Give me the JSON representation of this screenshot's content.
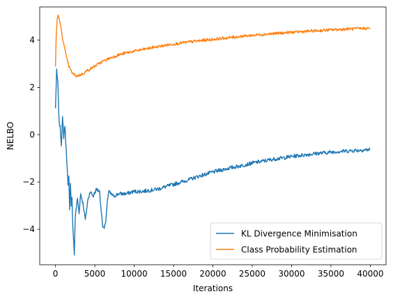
{
  "chart_data": {
    "type": "line",
    "title": "",
    "xlabel": "Iterations",
    "ylabel": "NELBO",
    "xlim": [
      -2000,
      42000
    ],
    "ylim": [
      -5.5,
      5.4
    ],
    "xticks": [
      0,
      5000,
      10000,
      15000,
      20000,
      25000,
      30000,
      35000,
      40000
    ],
    "yticks": [
      -4,
      -2,
      0,
      2,
      4
    ],
    "grid": false,
    "legend_position": "lower-right",
    "series": [
      {
        "name": "KL Divergence Minimisation",
        "color": "#1f77b4",
        "noise": 0.08,
        "x": [
          0,
          150,
          300,
          450,
          600,
          750,
          900,
          1050,
          1200,
          1300,
          1400,
          1500,
          1600,
          1700,
          1800,
          1900,
          2000,
          2100,
          2200,
          2300,
          2400,
          2500,
          2600,
          2800,
          3000,
          3200,
          3500,
          3800,
          4100,
          4400,
          4800,
          5200,
          5600,
          6000,
          6200,
          6400,
          6600,
          6800,
          7000,
          7400,
          8000,
          9000,
          10000,
          11000,
          12000,
          13000,
          14000,
          15000,
          16000,
          17000,
          18000,
          19000,
          20000,
          21000,
          22000,
          23000,
          24000,
          25000,
          26000,
          27000,
          28000,
          29000,
          30000,
          31000,
          32000,
          33000,
          34000,
          35000,
          36000,
          37000,
          38000,
          39000,
          40000
        ],
        "y": [
          1.1,
          2.7,
          2.2,
          0.6,
          0.3,
          -0.4,
          0.7,
          -0.1,
          0.4,
          -0.3,
          -0.8,
          -1.5,
          -2.2,
          -1.8,
          -3.1,
          -2.0,
          -3.0,
          -2.7,
          -3.9,
          -4.4,
          -5.1,
          -3.6,
          -3.2,
          -2.7,
          -3.3,
          -2.5,
          -2.9,
          -3.6,
          -2.8,
          -2.4,
          -2.6,
          -2.3,
          -2.4,
          -3.9,
          -4.0,
          -3.6,
          -2.8,
          -2.4,
          -2.5,
          -2.6,
          -2.5,
          -2.5,
          -2.4,
          -2.4,
          -2.35,
          -2.3,
          -2.2,
          -2.1,
          -2.0,
          -1.9,
          -1.78,
          -1.68,
          -1.58,
          -1.5,
          -1.42,
          -1.35,
          -1.28,
          -1.2,
          -1.14,
          -1.08,
          -1.02,
          -0.98,
          -0.92,
          -0.88,
          -0.84,
          -0.8,
          -0.77,
          -0.74,
          -0.71,
          -0.69,
          -0.67,
          -0.65,
          -0.63
        ]
      },
      {
        "name": "Class Probability Estimation",
        "color": "#ff7f0e",
        "noise": 0.06,
        "x": [
          0,
          100,
          200,
          300,
          400,
          500,
          700,
          900,
          1100,
          1300,
          1500,
          1700,
          1900,
          2100,
          2300,
          2500,
          2700,
          2900,
          3100,
          3500,
          4000,
          5000,
          6000,
          7000,
          8000,
          9000,
          10000,
          12000,
          14000,
          16000,
          18000,
          20000,
          22000,
          24000,
          26000,
          28000,
          30000,
          32000,
          34000,
          36000,
          38000,
          40000
        ],
        "y": [
          2.9,
          4.2,
          4.8,
          5.05,
          5.0,
          4.85,
          4.5,
          4.1,
          3.75,
          3.4,
          3.15,
          2.9,
          2.75,
          2.62,
          2.55,
          2.5,
          2.48,
          2.5,
          2.52,
          2.58,
          2.7,
          2.9,
          3.1,
          3.25,
          3.37,
          3.46,
          3.53,
          3.66,
          3.78,
          3.88,
          3.96,
          4.03,
          4.1,
          4.17,
          4.23,
          4.28,
          4.33,
          4.37,
          4.41,
          4.45,
          4.48,
          4.5
        ]
      }
    ]
  }
}
